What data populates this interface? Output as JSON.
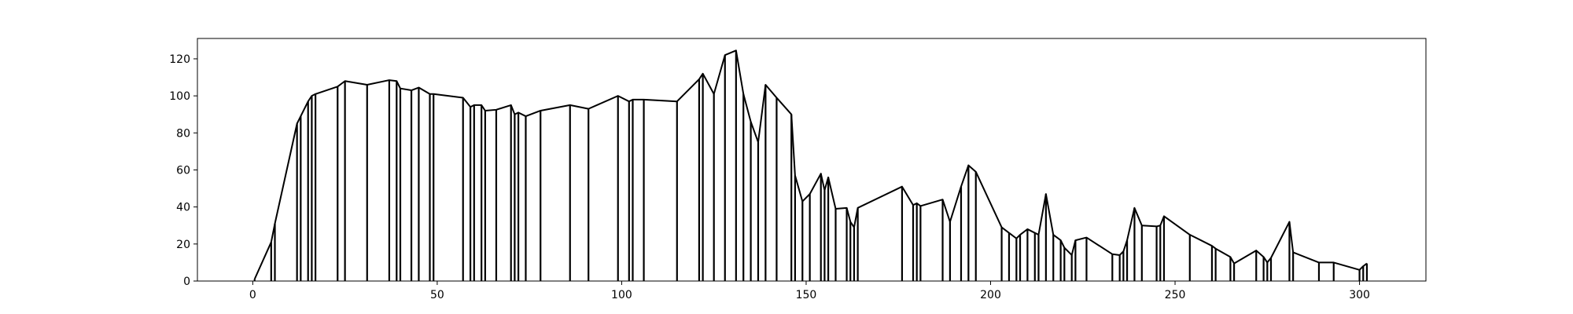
{
  "chart_data": {
    "type": "line",
    "title": "",
    "xlabel": "",
    "ylabel": "",
    "xlim": [
      -15,
      318
    ],
    "ylim": [
      0,
      131
    ],
    "xticks": [
      0,
      50,
      100,
      150,
      200,
      250,
      300
    ],
    "yticks": [
      0,
      20,
      40,
      60,
      80,
      100,
      120
    ],
    "grid": false,
    "stems": true,
    "series": [
      {
        "color": "#000000",
        "x": [
          0.5,
          5,
          6,
          12,
          13,
          15,
          16,
          17,
          23,
          25,
          31,
          37,
          39,
          40,
          43,
          45,
          48,
          49,
          57,
          59,
          60,
          62,
          63,
          66,
          70,
          71,
          72,
          74,
          78,
          86,
          91,
          99,
          102,
          103,
          106,
          115,
          121,
          122,
          125,
          128,
          131,
          133,
          135,
          137,
          139,
          142,
          146,
          147,
          149,
          151,
          154,
          155,
          156,
          158,
          161,
          162,
          163,
          164,
          176,
          179,
          180,
          181,
          187,
          189,
          192,
          194,
          196,
          203,
          205,
          207,
          208,
          210,
          212,
          213,
          215,
          217,
          219,
          220,
          222,
          223,
          226,
          233,
          235,
          236,
          237,
          239,
          241,
          245,
          246,
          247,
          254,
          260,
          261,
          265,
          266,
          272,
          274,
          275,
          276,
          281,
          282,
          289,
          293,
          300,
          301,
          302
        ],
        "y": [
          1,
          21,
          31,
          85,
          89,
          97,
          100,
          101,
          105,
          108,
          106,
          108.5,
          108,
          104,
          103,
          104.5,
          101,
          101,
          99,
          94,
          95,
          95,
          92,
          92.5,
          95,
          90,
          91,
          89,
          92,
          95,
          93,
          100,
          97,
          98,
          98,
          97,
          109,
          112,
          101,
          122,
          124.5,
          101,
          86,
          75,
          106,
          99,
          90,
          57,
          43,
          47,
          58,
          49,
          56,
          39,
          39.5,
          32,
          29,
          39.5,
          51,
          41,
          42,
          40.5,
          44,
          32,
          51,
          62.5,
          59,
          29,
          26,
          23,
          25,
          28,
          26,
          25,
          47,
          25,
          22,
          18,
          14,
          22,
          23.5,
          14.5,
          14,
          16,
          22,
          39.5,
          30,
          29.5,
          30,
          35,
          25,
          19,
          17.5,
          13,
          9.5,
          16.5,
          13,
          10,
          12.5,
          32,
          15.5,
          10,
          10,
          6,
          8,
          9.5
        ]
      }
    ]
  }
}
